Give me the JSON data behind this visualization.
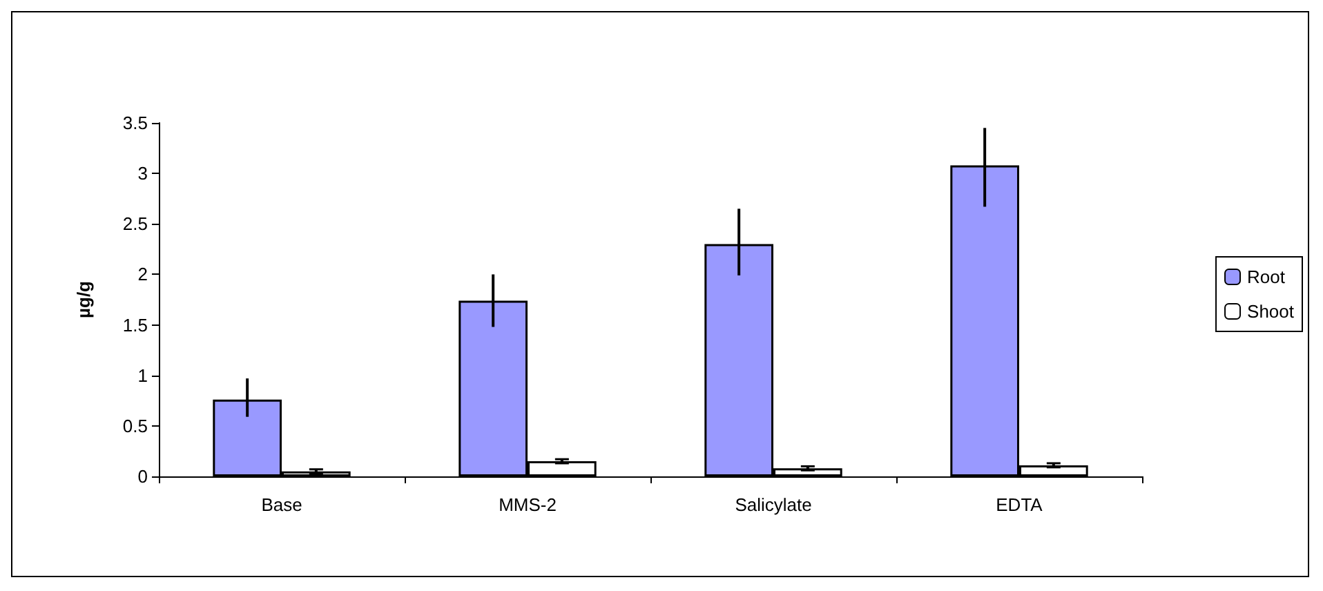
{
  "chart_data": {
    "type": "bar",
    "ylabel": "µg/g",
    "categories": [
      "Base",
      "MMS-2",
      "Salicylate",
      "EDTA"
    ],
    "series": [
      {
        "name": "Root",
        "color": "#9999ff",
        "values": [
          0.76,
          1.74,
          2.3,
          3.08
        ],
        "errors": [
          [
            0.59,
            0.97
          ],
          [
            1.48,
            2.0
          ],
          [
            1.99,
            2.65
          ],
          [
            2.67,
            3.45
          ]
        ]
      },
      {
        "name": "Shoot",
        "color": "#ffffff",
        "values": [
          0.05,
          0.15,
          0.08,
          0.11
        ],
        "errors": [
          0.02,
          0.02,
          0.02,
          0.02
        ]
      }
    ],
    "ylim": [
      0,
      3.5
    ],
    "yticks": [
      0,
      0.5,
      1,
      1.5,
      2,
      2.5,
      3,
      3.5
    ],
    "grid": false,
    "legend": "right"
  }
}
